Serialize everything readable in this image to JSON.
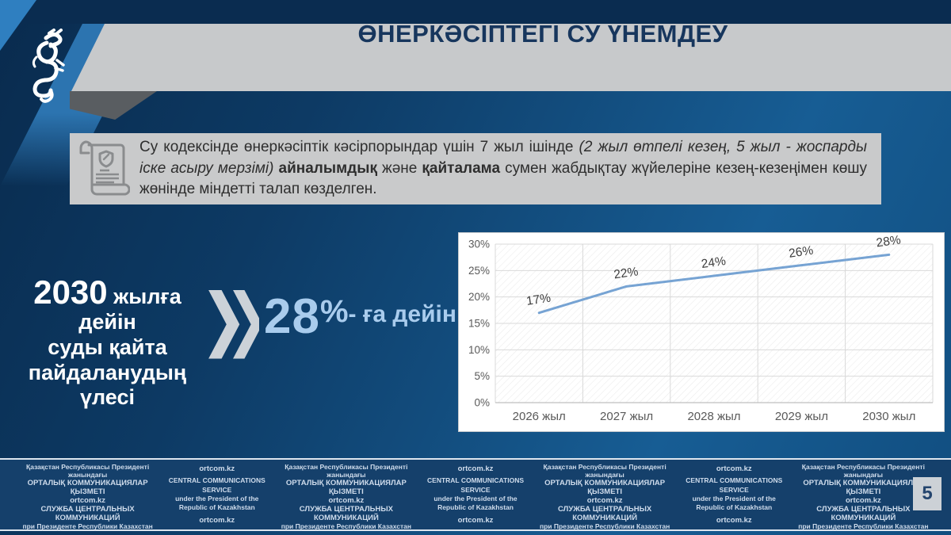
{
  "header": {
    "title": "ӨНЕРКӘСІПТЕГІ СУ ҮНЕМДЕУ"
  },
  "icons": {
    "logo": "snow-leopard-emblem",
    "info": "document-shield-icon",
    "arrow": "double-chevron-right-icon"
  },
  "info_box": {
    "part1": "Су кодексінде өнеркәсіптік кәсірпорындар үшін 7 жыл ішінде ",
    "part2_italic": "(2 жыл өтпелі кезең, 5 жыл - жоспарды іске асыру мерзімі)",
    "part3": " ",
    "part4_bold": "айналымдық",
    "part5": " және ",
    "part6_bold": "қайталама",
    "part7": " сумен жабдықтау жүйелеріне кезең-кезеңімен көшу жөнінде міндетті талап көзделген."
  },
  "highlight": {
    "line1_big": "2030",
    "line1_rest": " жылға дейін",
    "line2": "суды қайта",
    "line3": "пайдаланудың",
    "line4": "үлесі",
    "value_number": "28",
    "value_percent": "%",
    "value_suffix": "- ға дейін"
  },
  "chart_data": {
    "type": "line",
    "title": "",
    "xlabel": "",
    "ylabel": "",
    "categories": [
      "2026 жыл",
      "2027 жыл",
      "2028 жыл",
      "2029 жыл",
      "2030 жыл"
    ],
    "values": [
      17,
      22,
      24,
      26,
      28
    ],
    "point_labels": [
      "17%",
      "22%",
      "24%",
      "26%",
      "28%"
    ],
    "ylim": [
      0,
      30
    ],
    "ytick_step": 5,
    "ytick_labels": [
      "0%",
      "5%",
      "10%",
      "15%",
      "20%",
      "25%",
      "30%"
    ],
    "grid": true,
    "legend": "none",
    "line_color": "#76a3d3",
    "label_color": "#3f3f3f",
    "tick_color": "#595959",
    "grid_color": "#d9d9d9"
  },
  "footer": {
    "kk_line1": "Қазақстан Республикасы Президенті жанындағы",
    "kk_line2": "ОРТАЛЫҚ КОММУНИКАЦИЯЛАР ҚЫЗМЕТІ",
    "site": "ortcom.kz",
    "en_line1": "CENTRAL COMMUNICATIONS SERVICE",
    "en_line2": "under the President of the",
    "en_line3": "Republic of Kazakhstan",
    "ru_line1": "СЛУЖБА ЦЕНТРАЛЬНЫХ КОММУНИКАЦИЙ",
    "ru_line2": "при Президенте Республики Казахстан",
    "page_number": "5"
  },
  "colors": {
    "accent_blue": "#2c74b0",
    "value_blue": "#a9cced",
    "banner_gray": "#c7c9cb",
    "title_navy": "#17365d",
    "footer_navy": "#15406b",
    "chart_line": "#76a3d3"
  }
}
